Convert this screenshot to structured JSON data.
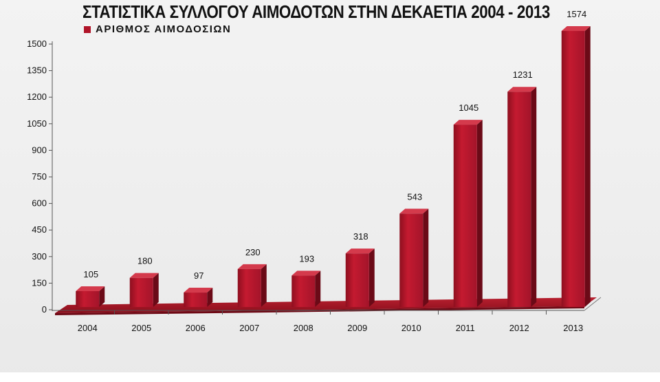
{
  "chart_data": {
    "type": "bar",
    "title": "ΣΤΑΤΙΣΤΙΚΑ ΣΥΛΛΟΓΟΥ ΑΙΜΟΔΟΤΩΝ ΣΤΗΝ ΔΕΚΑΕΤΙΑ 2004 - 2013",
    "categories": [
      "2004",
      "2005",
      "2006",
      "2007",
      "2008",
      "2009",
      "2010",
      "2011",
      "2012",
      "2013"
    ],
    "series": [
      {
        "name": "ΑΡΙΘΜΟΣ ΑΙΜΟΔΟΣΙΩΝ",
        "values": [
          105,
          180,
          97,
          230,
          193,
          318,
          543,
          1045,
          1231,
          1574
        ],
        "color": "#b01428"
      }
    ],
    "data_labels": [
      "105",
      "180",
      "97",
      "230",
      "193",
      "318",
      "543",
      "1045",
      "1231",
      "1574"
    ],
    "y_ticks": [
      "0",
      "150",
      "300",
      "450",
      "600",
      "750",
      "900",
      "1050",
      "1200",
      "1350",
      "1500"
    ],
    "ylim": [
      0,
      1500
    ],
    "xlabel": "",
    "ylabel": "",
    "grid": false,
    "legend_position": "top-left",
    "style": "3d"
  }
}
